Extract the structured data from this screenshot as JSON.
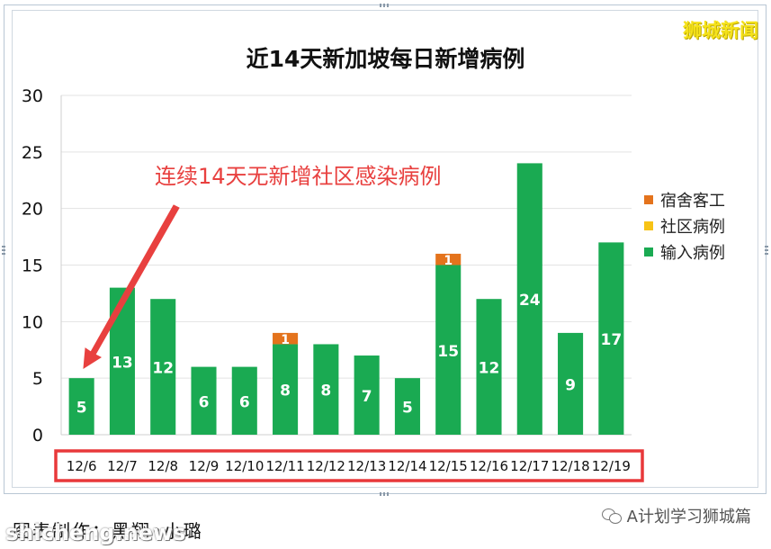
{
  "header": {
    "watermark": "狮城新闻"
  },
  "annotation": "连续14天无新增社区感染病例",
  "footer": {
    "caption": "图表制作：黑翔◦小璐",
    "site": "shicheng.news",
    "account": "A计划学习狮城篇"
  },
  "colors": {
    "dorm": "#e4731c",
    "community": "#f7c316",
    "imported": "#1aaa52",
    "annotation": "#e8403f",
    "highlight_box": "#e8383a"
  },
  "chart_data": {
    "type": "bar",
    "stacked": true,
    "title": "近14天新加坡每日新增病例",
    "categories": [
      "12/6",
      "12/7",
      "12/8",
      "12/9",
      "12/10",
      "12/11",
      "12/12",
      "12/13",
      "12/14",
      "12/15",
      "12/16",
      "12/17",
      "12/18",
      "12/19"
    ],
    "series": [
      {
        "name": "输入病例",
        "color": "#1aaa52",
        "values": [
          5,
          13,
          12,
          6,
          6,
          8,
          8,
          7,
          5,
          15,
          12,
          24,
          9,
          17
        ]
      },
      {
        "name": "社区病例",
        "color": "#f7c316",
        "values": [
          0,
          0,
          0,
          0,
          0,
          0,
          0,
          0,
          0,
          0,
          0,
          0,
          0,
          0
        ]
      },
      {
        "name": "宿舍客工",
        "color": "#e4731c",
        "values": [
          0,
          0,
          0,
          0,
          0,
          1,
          0,
          0,
          0,
          1,
          0,
          0,
          0,
          0
        ]
      }
    ],
    "legend_order": [
      "宿舍客工",
      "社区病例",
      "输入病例"
    ],
    "ylim": [
      0,
      30
    ],
    "yticks": [
      0,
      5,
      10,
      15,
      20,
      25,
      30
    ],
    "grid": true,
    "legend_position": "right"
  }
}
